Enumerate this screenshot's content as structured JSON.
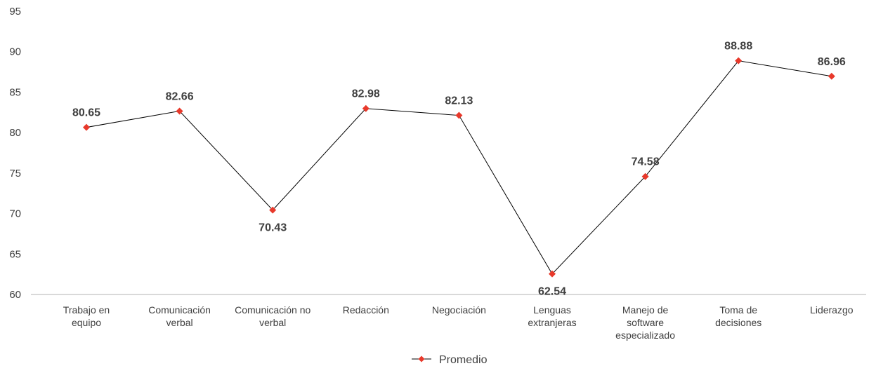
{
  "chart_data": {
    "type": "line",
    "categories": [
      [
        "Trabajo en",
        "equipo"
      ],
      [
        "Comunicación",
        "verbal"
      ],
      [
        "Comunicación no",
        "verbal"
      ],
      [
        "Redacción"
      ],
      [
        "Negociación"
      ],
      [
        "Lenguas",
        "extranjeras"
      ],
      [
        "Manejo de",
        "software",
        "especializado"
      ],
      [
        "Toma de",
        "decisiones"
      ],
      [
        "Liderazgo"
      ]
    ],
    "series": [
      {
        "name": "Promedio",
        "values": [
          80.65,
          82.66,
          70.43,
          82.98,
          82.13,
          62.54,
          74.58,
          88.88,
          86.96
        ],
        "labels": [
          "80.65",
          "82.66",
          "70.43",
          "82.98",
          "82.13",
          "62.54",
          "74.58",
          "88.88",
          "86.96"
        ],
        "label_position": [
          "above",
          "above",
          "below",
          "above",
          "above",
          "below",
          "above",
          "above",
          "above"
        ]
      }
    ],
    "ylim": [
      60,
      95
    ],
    "yticks": [
      "60",
      "65",
      "70",
      "75",
      "80",
      "85",
      "90",
      "95"
    ],
    "grid": false,
    "legend_position": "bottom",
    "colors": {
      "line": "#000000",
      "marker": "#e8392b",
      "axis": "#d9d9d9",
      "text": "#404040"
    }
  }
}
